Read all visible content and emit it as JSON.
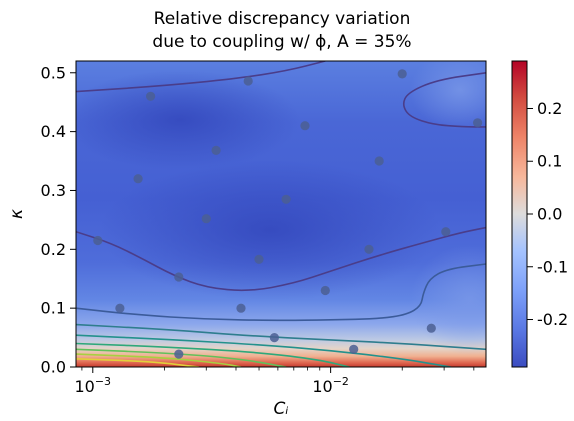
{
  "chart_data": {
    "type": "heatmap",
    "title_lines": [
      "Relative discrepancy variation",
      "due to coupling w/ ϕ, A = 35%"
    ],
    "xlabel": "Cᵢ",
    "ylabel": "κ",
    "x_scale": "log",
    "xlim": [
      0.00085,
      0.045
    ],
    "ylim": [
      0,
      0.52
    ],
    "x_ticks": [
      {
        "value": 0.001,
        "base": "10",
        "exp": "−3"
      },
      {
        "value": 0.01,
        "base": "10",
        "exp": "−2"
      }
    ],
    "y_ticks": [
      0.0,
      0.1,
      0.2,
      0.3,
      0.4,
      0.5
    ],
    "y_tick_labels": [
      "0.0",
      "0.1",
      "0.2",
      "0.3",
      "0.4",
      "0.5"
    ],
    "colorbar": {
      "range": [
        -0.29,
        0.29
      ],
      "ticks": [
        0.2,
        0.1,
        0.0,
        -0.1,
        -0.2
      ],
      "tick_labels": [
        "0.2",
        "0.1",
        "0.0",
        "-0.1",
        "-0.2"
      ],
      "colormap": "coolwarm",
      "low_color": "#3b4cc0",
      "mid_color": "#dddddd",
      "high_color": "#b40426"
    },
    "points": [
      {
        "x": 0.00105,
        "y": 0.215
      },
      {
        "x": 0.0013,
        "y": 0.1
      },
      {
        "x": 0.00155,
        "y": 0.32
      },
      {
        "x": 0.00175,
        "y": 0.46
      },
      {
        "x": 0.0023,
        "y": 0.153
      },
      {
        "x": 0.0023,
        "y": 0.022
      },
      {
        "x": 0.003,
        "y": 0.252
      },
      {
        "x": 0.0033,
        "y": 0.368
      },
      {
        "x": 0.0042,
        "y": 0.1
      },
      {
        "x": 0.0045,
        "y": 0.486
      },
      {
        "x": 0.005,
        "y": 0.183
      },
      {
        "x": 0.0058,
        "y": 0.05
      },
      {
        "x": 0.0065,
        "y": 0.285
      },
      {
        "x": 0.0078,
        "y": 0.41
      },
      {
        "x": 0.0095,
        "y": 0.13
      },
      {
        "x": 0.0125,
        "y": 0.03
      },
      {
        "x": 0.0145,
        "y": 0.2
      },
      {
        "x": 0.016,
        "y": 0.35
      },
      {
        "x": 0.02,
        "y": 0.498
      },
      {
        "x": 0.0265,
        "y": 0.066
      },
      {
        "x": 0.0305,
        "y": 0.23
      },
      {
        "x": 0.0415,
        "y": 0.415
      }
    ],
    "contours": [
      {
        "color": "#4a3d8a",
        "segments": [
          [
            [
              0.00085,
              0.468
            ],
            [
              0.002,
              0.478
            ],
            [
              0.004,
              0.49
            ],
            [
              0.0065,
              0.503
            ],
            [
              0.0095,
              0.52
            ]
          ]
        ]
      },
      {
        "color": "#4a3d8a",
        "segments": [
          [
            [
              0.045,
              0.5
            ],
            [
              0.028,
              0.488
            ],
            [
              0.021,
              0.466
            ],
            [
              0.02,
              0.445
            ],
            [
              0.0215,
              0.425
            ],
            [
              0.027,
              0.412
            ],
            [
              0.036,
              0.408
            ],
            [
              0.045,
              0.408
            ]
          ]
        ]
      },
      {
        "color": "#4a3d8a",
        "segments": [
          [
            [
              0.00085,
              0.23
            ],
            [
              0.0012,
              0.21
            ],
            [
              0.0016,
              0.185
            ],
            [
              0.0022,
              0.155
            ],
            [
              0.003,
              0.135
            ],
            [
              0.0045,
              0.128
            ],
            [
              0.007,
              0.142
            ],
            [
              0.01,
              0.163
            ],
            [
              0.016,
              0.19
            ],
            [
              0.025,
              0.212
            ],
            [
              0.035,
              0.228
            ],
            [
              0.045,
              0.237
            ]
          ]
        ]
      },
      {
        "color": "#3b5b9a",
        "segments": [
          [
            [
              0.00085,
              0.1
            ],
            [
              0.0015,
              0.089
            ],
            [
              0.003,
              0.081
            ],
            [
              0.006,
              0.079
            ],
            [
              0.01,
              0.08
            ],
            [
              0.016,
              0.082
            ],
            [
              0.021,
              0.089
            ],
            [
              0.024,
              0.104
            ],
            [
              0.0245,
              0.125
            ],
            [
              0.026,
              0.15
            ],
            [
              0.031,
              0.167
            ],
            [
              0.045,
              0.175
            ]
          ]
        ]
      },
      {
        "color": "#2e7d8e",
        "segments": [
          [
            [
              0.00085,
              0.072
            ],
            [
              0.002,
              0.064
            ],
            [
              0.005,
              0.052
            ],
            [
              0.01,
              0.046
            ],
            [
              0.02,
              0.04
            ],
            [
              0.045,
              0.03
            ]
          ]
        ]
      },
      {
        "color": "#23918c",
        "segments": [
          [
            [
              0.00085,
              0.054
            ],
            [
              0.002,
              0.047
            ],
            [
              0.005,
              0.038
            ],
            [
              0.01,
              0.028
            ],
            [
              0.02,
              0.014
            ],
            [
              0.032,
              0.0
            ]
          ]
        ]
      },
      {
        "color": "#2ea87a",
        "segments": [
          [
            [
              0.00085,
              0.04
            ],
            [
              0.002,
              0.034
            ],
            [
              0.005,
              0.025
            ],
            [
              0.009,
              0.012
            ],
            [
              0.012,
              0.0
            ]
          ]
        ]
      },
      {
        "color": "#62c05a",
        "segments": [
          [
            [
              0.00085,
              0.03
            ],
            [
              0.002,
              0.024
            ],
            [
              0.004,
              0.015
            ],
            [
              0.0065,
              0.0
            ]
          ]
        ]
      },
      {
        "color": "#a8d040",
        "segments": [
          [
            [
              0.00085,
              0.022
            ],
            [
              0.002,
              0.016
            ],
            [
              0.0035,
              0.006
            ],
            [
              0.0042,
              0.0
            ]
          ]
        ]
      },
      {
        "color": "#e2d13a",
        "segments": [
          [
            [
              0.00085,
              0.014
            ],
            [
              0.0018,
              0.009
            ],
            [
              0.0028,
              0.0
            ]
          ]
        ]
      }
    ]
  }
}
